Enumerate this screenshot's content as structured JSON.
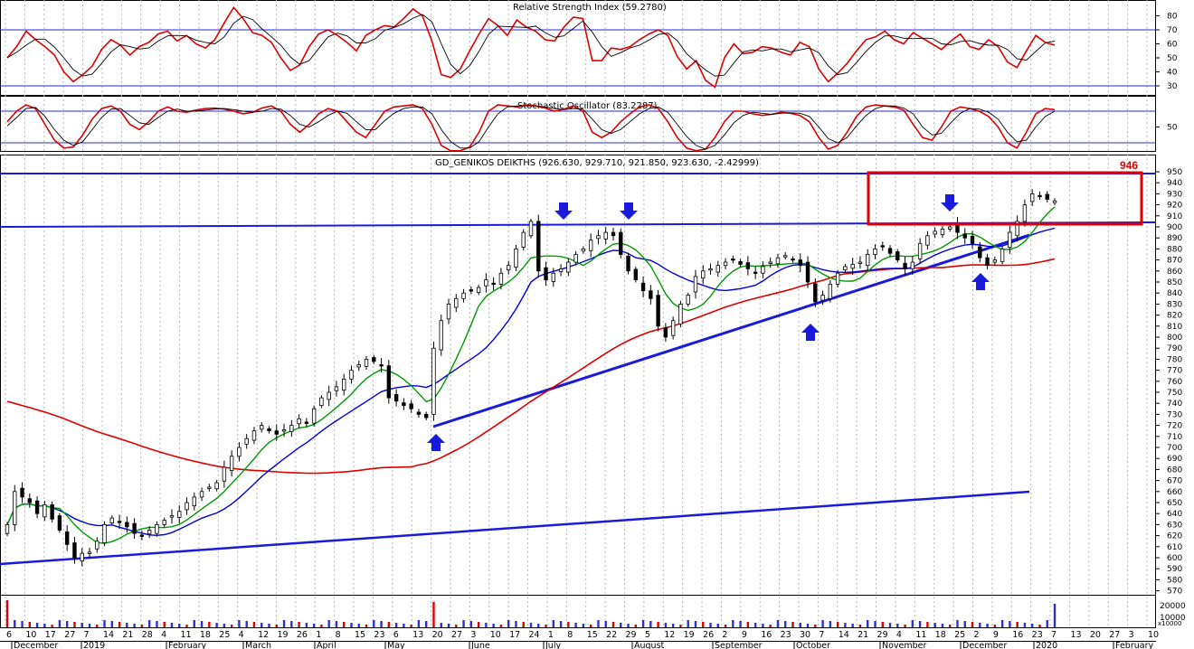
{
  "chart_data": [
    {
      "type": "line",
      "panel": "rsi",
      "title": "Relative Strength Index (59.2780)",
      "yticks": [
        30,
        40,
        50,
        60,
        70,
        80
      ],
      "ylim": [
        25,
        88
      ],
      "reference_lines": [
        30,
        70
      ],
      "series": [
        {
          "color": "#dd0000",
          "values": [
            50,
            58,
            69,
            63,
            58,
            52,
            40,
            33,
            38,
            44,
            56,
            63,
            59,
            52,
            58,
            61,
            67,
            69,
            62,
            66,
            60,
            57,
            63,
            75,
            86,
            78,
            68,
            66,
            61,
            50,
            41,
            45,
            58,
            67,
            70,
            66,
            61,
            55,
            66,
            70,
            73,
            72,
            78,
            85,
            80,
            62,
            38,
            36,
            42,
            55,
            67,
            78,
            73,
            66,
            77,
            72,
            69,
            63,
            62,
            72,
            79,
            78,
            48,
            48,
            57,
            56,
            58,
            63,
            67,
            70,
            66,
            51,
            42,
            48,
            34,
            29,
            50,
            60,
            53,
            54,
            58,
            57,
            54,
            52,
            61,
            58,
            42,
            33,
            39,
            46,
            55,
            63,
            65,
            69,
            63,
            60,
            68,
            64,
            60,
            56,
            62,
            67,
            58,
            56,
            63,
            58,
            47,
            43,
            55,
            66,
            61,
            59
          ]
        }
      ]
    },
    {
      "type": "line",
      "panel": "stochastic",
      "title": "Stochastic Oscillator (83.2287)",
      "yticks": [
        50
      ],
      "ylim": [
        0,
        100
      ],
      "reference_lines": [
        20,
        80
      ],
      "series": [
        {
          "color": "#dd0000",
          "values": [
            60,
            80,
            92,
            85,
            55,
            25,
            10,
            12,
            35,
            65,
            85,
            90,
            80,
            55,
            45,
            60,
            80,
            88,
            80,
            78,
            82,
            85,
            86,
            84,
            80,
            75,
            78,
            86,
            90,
            80,
            55,
            40,
            55,
            75,
            85,
            80,
            60,
            40,
            30,
            55,
            80,
            88,
            90,
            92,
            85,
            55,
            15,
            5,
            5,
            12,
            40,
            80,
            92,
            90,
            88,
            92,
            90,
            86,
            80,
            84,
            90,
            80,
            40,
            30,
            40,
            60,
            75,
            88,
            92,
            85,
            60,
            30,
            10,
            5,
            8,
            30,
            60,
            80,
            80,
            75,
            72,
            74,
            78,
            76,
            72,
            60,
            30,
            8,
            15,
            40,
            70,
            88,
            92,
            90,
            88,
            82,
            55,
            30,
            25,
            50,
            80,
            88,
            85,
            80,
            70,
            50,
            20,
            10,
            40,
            75,
            85,
            83
          ]
        },
        {
          "color": "#000000",
          "values": [
            52,
            68,
            85,
            87,
            70,
            45,
            25,
            15,
            22,
            45,
            68,
            84,
            85,
            72,
            58,
            55,
            68,
            80,
            84,
            80,
            80,
            82,
            84,
            85,
            83,
            80,
            78,
            80,
            85,
            84,
            72,
            55,
            50,
            60,
            72,
            80,
            76,
            60,
            45,
            45,
            62,
            76,
            85,
            88,
            88,
            75,
            45,
            22,
            10,
            10,
            22,
            50,
            75,
            88,
            90,
            90,
            90,
            88,
            85,
            83,
            85,
            84,
            65,
            45,
            38,
            45,
            60,
            75,
            85,
            88,
            78,
            55,
            32,
            15,
            8,
            15,
            35,
            58,
            72,
            78,
            76,
            74,
            76,
            77,
            76,
            70,
            50,
            28,
            20,
            30,
            52,
            72,
            85,
            90,
            90,
            86,
            75,
            50,
            35,
            38,
            58,
            76,
            85,
            84,
            78,
            65,
            40,
            22,
            25,
            50,
            70,
            80
          ]
        }
      ]
    },
    {
      "type": "candlestick",
      "panel": "price",
      "title": "GD_GENIKOS DEIKTHS (926.630, 929.710, 921.850, 923.630, -2.42999)",
      "yticks": [
        570,
        580,
        590,
        600,
        610,
        620,
        630,
        640,
        650,
        660,
        670,
        680,
        690,
        700,
        710,
        720,
        730,
        740,
        750,
        760,
        770,
        780,
        790,
        800,
        810,
        820,
        830,
        840,
        850,
        860,
        870,
        880,
        890,
        900,
        910,
        920,
        930,
        940,
        950
      ],
      "ylim": [
        563,
        955
      ],
      "close": [
        630,
        660,
        655,
        650,
        640,
        648,
        635,
        625,
        612,
        600,
        604,
        605,
        615,
        630,
        636,
        632,
        628,
        622,
        620,
        625,
        630,
        634,
        638,
        642,
        650,
        655,
        660,
        664,
        668,
        682,
        692,
        700,
        708,
        715,
        720,
        715,
        712,
        716,
        720,
        726,
        722,
        735,
        745,
        750,
        755,
        762,
        770,
        775,
        780,
        778,
        774,
        745,
        742,
        738,
        735,
        730,
        727,
        790,
        815,
        830,
        835,
        840,
        842,
        845,
        852,
        848,
        858,
        865,
        880,
        895,
        905,
        860,
        852,
        858,
        862,
        868,
        875,
        880,
        888,
        892,
        895,
        892,
        875,
        860,
        852,
        842,
        835,
        810,
        800,
        815,
        830,
        838,
        855,
        860,
        862,
        865,
        868,
        870,
        866,
        862,
        858,
        864,
        868,
        872,
        874,
        870,
        865,
        850,
        832,
        838,
        848,
        858,
        864,
        866,
        868,
        875,
        880,
        882,
        876,
        870,
        862,
        868,
        885,
        892,
        896,
        898,
        900,
        895,
        890,
        885,
        872,
        865,
        870,
        880,
        895,
        905,
        920,
        930,
        928,
        925,
        923.63
      ],
      "volume_panel": {
        "yticks": [
          "20000",
          "10000",
          "x10000"
        ]
      },
      "annotations": [
        {
          "text": "946",
          "color": "#e00000"
        }
      ],
      "series": [
        {
          "name": "",
          "color": "#009900",
          "type": "moving-average"
        },
        {
          "name": "",
          "color": "#0000dd",
          "type": "moving-average"
        },
        {
          "name": "",
          "color": "#dd0000",
          "type": "moving-average"
        }
      ],
      "xlabels_top": [
        "6",
        "10",
        "17",
        "27",
        "7",
        "14",
        "21",
        "28",
        "4",
        "11",
        "18",
        "25",
        "4",
        "12",
        "19",
        "26",
        "1",
        "8",
        "15",
        "23",
        "6",
        "13",
        "20",
        "27",
        "3",
        "10",
        "17",
        "24",
        "1",
        "8",
        "15",
        "22",
        "29",
        "5",
        "12",
        "19",
        "26",
        "2",
        "9",
        "16",
        "23",
        "30",
        "7",
        "14",
        "21",
        "29",
        "4",
        "11",
        "18",
        "25",
        "2",
        "9",
        "16",
        "23",
        "7",
        "13",
        "20",
        "27",
        "3",
        "10"
      ],
      "xlabels_bottom": [
        "December",
        "2019",
        "February",
        "March",
        "April",
        "May",
        "June",
        "July",
        "August",
        "September",
        "October",
        "November",
        "December",
        "2020",
        "February"
      ]
    }
  ]
}
